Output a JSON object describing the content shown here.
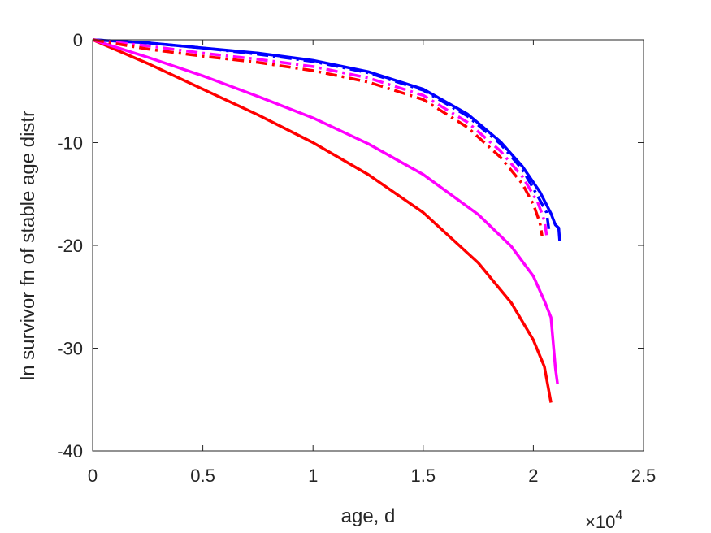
{
  "chart_data": {
    "type": "line",
    "title": "",
    "xlabel": "age, d",
    "ylabel": "ln survivor fn of stable age distr",
    "x_exponent_label": "×10",
    "x_exponent_power": "4",
    "xlim": [
      0,
      25000
    ],
    "ylim": [
      -40,
      0
    ],
    "x_ticks": [
      0,
      5000,
      10000,
      15000,
      20000,
      25000
    ],
    "x_tick_labels": [
      "0",
      "0.5",
      "1",
      "1.5",
      "2",
      "2.5"
    ],
    "y_ticks": [
      0,
      -10,
      -20,
      -30,
      -40
    ],
    "y_tick_labels": [
      "0",
      "-10",
      "-20",
      "-30",
      "-40"
    ],
    "grid": false,
    "series": [
      {
        "color": "#ff0000",
        "style": "solid",
        "x": [
          0,
          2500,
          5000,
          7500,
          10000,
          12500,
          15000,
          17500,
          19000,
          20000,
          20500,
          20800
        ],
        "y": [
          0,
          -2.3,
          -4.8,
          -7.3,
          -10.0,
          -13.1,
          -16.8,
          -21.7,
          -25.6,
          -29.2,
          -31.8,
          -35.3
        ]
      },
      {
        "color": "#ff00ff",
        "style": "solid",
        "x": [
          0,
          2500,
          5000,
          7500,
          10000,
          12500,
          15000,
          17500,
          19000,
          20000,
          20500,
          20800,
          21000,
          21100
        ],
        "y": [
          0,
          -1.7,
          -3.5,
          -5.5,
          -7.6,
          -10.1,
          -13.1,
          -17.0,
          -20.1,
          -23.0,
          -25.4,
          -27.0,
          -31.9,
          -33.5
        ]
      },
      {
        "color": "#0000ff",
        "style": "solid",
        "x": [
          0,
          2500,
          5000,
          7500,
          10000,
          12500,
          15000,
          17000,
          18500,
          19500,
          20300,
          20800,
          21000,
          21150,
          21200
        ],
        "y": [
          0,
          -0.3,
          -0.8,
          -1.3,
          -2.0,
          -3.1,
          -4.8,
          -7.2,
          -9.9,
          -12.3,
          -14.8,
          -16.9,
          -18.0,
          -18.3,
          -19.6
        ]
      },
      {
        "color": "#0000ff",
        "style": "dashdot",
        "x": [
          0,
          2500,
          5000,
          7500,
          10000,
          12500,
          15000,
          17000,
          18500,
          19500,
          20200,
          20600,
          20700
        ],
        "y": [
          0,
          -0.3,
          -0.8,
          -1.4,
          -2.1,
          -3.2,
          -4.9,
          -7.4,
          -10.1,
          -12.6,
          -15.2,
          -16.8,
          -18.4
        ]
      },
      {
        "color": "#ff00ff",
        "style": "dashdot",
        "x": [
          0,
          2500,
          5000,
          7500,
          10000,
          12500,
          15000,
          17000,
          18500,
          19500,
          20200,
          20500,
          20600
        ],
        "y": [
          0,
          -0.6,
          -1.3,
          -1.9,
          -2.6,
          -3.7,
          -5.4,
          -8.0,
          -10.8,
          -13.3,
          -15.8,
          -17.6,
          -19.0
        ]
      },
      {
        "color": "#ff0000",
        "style": "dashdot",
        "x": [
          0,
          2500,
          5000,
          7500,
          10000,
          12500,
          15000,
          17000,
          18500,
          19500,
          20000,
          20300,
          20400
        ],
        "y": [
          0,
          -0.9,
          -1.6,
          -2.2,
          -3.0,
          -4.1,
          -5.8,
          -8.5,
          -11.4,
          -14.0,
          -16.0,
          -17.8,
          -19.1
        ]
      }
    ]
  }
}
